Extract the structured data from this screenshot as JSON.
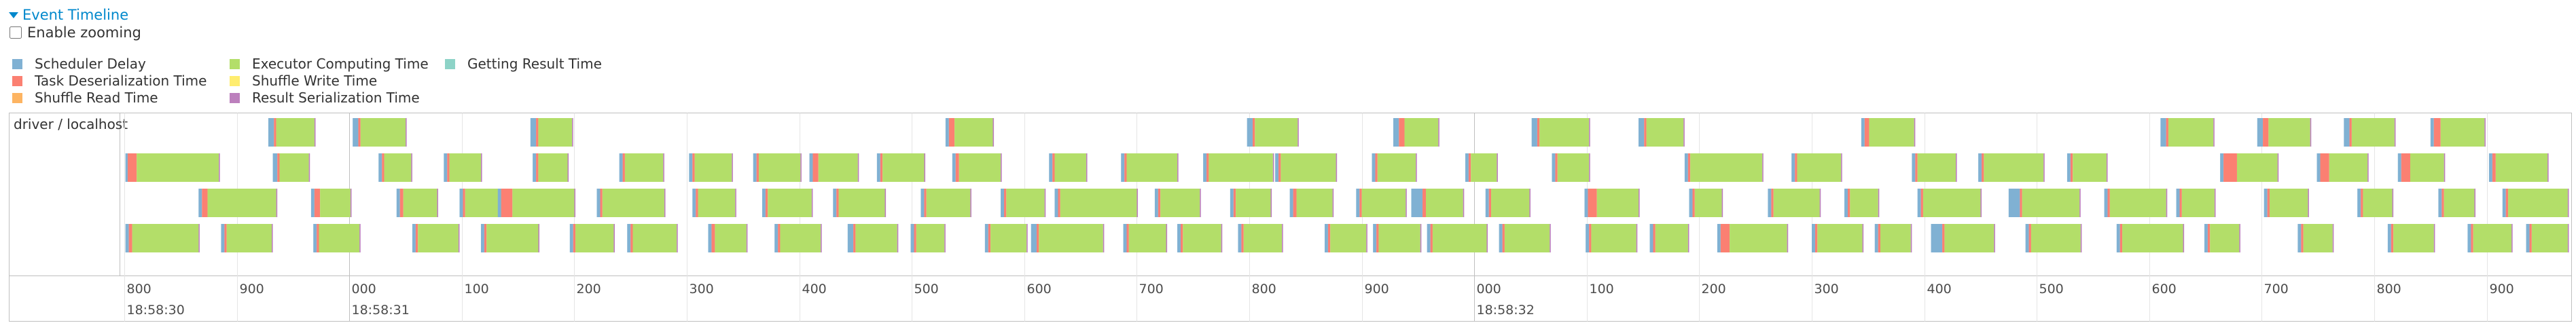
{
  "header": {
    "toggle_label": "Event Timeline",
    "zoom_label": "Enable zooming",
    "zoom_checked": false
  },
  "legend": [
    {
      "label": "Scheduler Delay",
      "color": "#80b1d3"
    },
    {
      "label": "Task Deserialization Time",
      "color": "#fb8072"
    },
    {
      "label": "Shuffle Read Time",
      "color": "#fdb462"
    },
    {
      "label": "Executor Computing Time",
      "color": "#b3de69"
    },
    {
      "label": "Shuffle Write Time",
      "color": "#ffed6f"
    },
    {
      "label": "Result Serialization Time",
      "color": "#bc80bd"
    },
    {
      "label": "Getting Result Time",
      "color": "#8dd3c7"
    }
  ],
  "timeline": {
    "group_label": "driver / localhost",
    "ticks": [
      {
        "ms": 800,
        "label": "800",
        "sub": "18:58:30"
      },
      {
        "ms": 900,
        "label": "900",
        "sub": ""
      },
      {
        "ms": 1000,
        "label": "000",
        "sub": "18:58:31",
        "major": true
      },
      {
        "ms": 1100,
        "label": "100",
        "sub": ""
      },
      {
        "ms": 1200,
        "label": "200",
        "sub": ""
      },
      {
        "ms": 1300,
        "label": "300",
        "sub": ""
      },
      {
        "ms": 1400,
        "label": "400",
        "sub": ""
      },
      {
        "ms": 1500,
        "label": "500",
        "sub": ""
      },
      {
        "ms": 1600,
        "label": "600",
        "sub": ""
      },
      {
        "ms": 1700,
        "label": "700",
        "sub": ""
      },
      {
        "ms": 1800,
        "label": "800",
        "sub": ""
      },
      {
        "ms": 1900,
        "label": "900",
        "sub": ""
      },
      {
        "ms": 2000,
        "label": "000",
        "sub": "18:58:32",
        "major": true
      },
      {
        "ms": 2100,
        "label": "100",
        "sub": ""
      },
      {
        "ms": 2200,
        "label": "200",
        "sub": ""
      },
      {
        "ms": 2300,
        "label": "300",
        "sub": ""
      },
      {
        "ms": 2400,
        "label": "400",
        "sub": ""
      },
      {
        "ms": 2500,
        "label": "500",
        "sub": ""
      },
      {
        "ms": 2600,
        "label": "600",
        "sub": ""
      },
      {
        "ms": 2700,
        "label": "700",
        "sub": ""
      },
      {
        "ms": 2800,
        "label": "800",
        "sub": ""
      },
      {
        "ms": 2900,
        "label": "900",
        "sub": ""
      }
    ],
    "rows": [
      [
        {
          "start": 928,
          "dur": 42,
          "sd": 5,
          "td": 2
        },
        {
          "start": 1003,
          "dur": 48,
          "sd": 5,
          "td": 2
        },
        {
          "start": 1161,
          "dur": 38,
          "sd": 5,
          "td": 2
        },
        {
          "start": 1530,
          "dur": 43,
          "sd": 3,
          "td": 5
        },
        {
          "start": 1798,
          "dur": 46,
          "sd": 5,
          "td": 2
        },
        {
          "start": 1928,
          "dur": 41,
          "sd": 5,
          "td": 5
        },
        {
          "start": 2051,
          "dur": 52,
          "sd": 5,
          "td": 2
        },
        {
          "start": 2146,
          "dur": 41,
          "sd": 5,
          "td": 2
        },
        {
          "start": 2344,
          "dur": 48,
          "sd": 3,
          "td": 4
        },
        {
          "start": 2610,
          "dur": 48,
          "sd": 5,
          "td": 2
        },
        {
          "start": 2696,
          "dur": 48,
          "sd": 5,
          "td": 5
        },
        {
          "start": 2773,
          "dur": 46,
          "sd": 5,
          "td": 2
        },
        {
          "start": 2850,
          "dur": 49,
          "sd": 3,
          "td": 6
        }
      ],
      [
        {
          "start": 801,
          "dur": 84,
          "sd": 2,
          "td": 8
        },
        {
          "start": 932,
          "dur": 33,
          "sd": 4,
          "td": 2
        },
        {
          "start": 1026,
          "dur": 30,
          "sd": 3,
          "td": 2
        },
        {
          "start": 1084,
          "dur": 34,
          "sd": 3,
          "td": 2
        },
        {
          "start": 1163,
          "dur": 32,
          "sd": 3,
          "td": 2
        },
        {
          "start": 1240,
          "dur": 40,
          "sd": 3,
          "td": 2
        },
        {
          "start": 1302,
          "dur": 39,
          "sd": 3,
          "td": 2
        },
        {
          "start": 1359,
          "dur": 43,
          "sd": 3,
          "td": 2
        },
        {
          "start": 1409,
          "dur": 44,
          "sd": 3,
          "td": 5
        },
        {
          "start": 1469,
          "dur": 43,
          "sd": 3,
          "td": 2
        },
        {
          "start": 1536,
          "dur": 44,
          "sd": 3,
          "td": 3
        },
        {
          "start": 1622,
          "dur": 34,
          "sd": 3,
          "td": 2
        },
        {
          "start": 1686,
          "dur": 51,
          "sd": 3,
          "td": 2
        },
        {
          "start": 1759,
          "dur": 63,
          "sd": 3,
          "td": 2
        },
        {
          "start": 1823,
          "dur": 55,
          "sd": 3,
          "td": 2
        },
        {
          "start": 1909,
          "dur": 40,
          "sd": 3,
          "td": 2
        },
        {
          "start": 1992,
          "dur": 29,
          "sd": 3,
          "td": 2
        },
        {
          "start": 2069,
          "dur": 34,
          "sd": 3,
          "td": 2
        },
        {
          "start": 2187,
          "dur": 70,
          "sd": 3,
          "td": 2
        },
        {
          "start": 2282,
          "dur": 45,
          "sd": 3,
          "td": 2
        },
        {
          "start": 2389,
          "dur": 40,
          "sd": 3,
          "td": 2
        },
        {
          "start": 2448,
          "dur": 59,
          "sd": 3,
          "td": 2
        },
        {
          "start": 2527,
          "dur": 36,
          "sd": 3,
          "td": 2
        },
        {
          "start": 2663,
          "dur": 52,
          "sd": 3,
          "td": 12
        },
        {
          "start": 2749,
          "dur": 46,
          "sd": 3,
          "td": 8
        },
        {
          "start": 2821,
          "dur": 42,
          "sd": 3,
          "td": 8
        },
        {
          "start": 2902,
          "dur": 53,
          "sd": 3,
          "td": 3
        }
      ],
      [
        {
          "start": 866,
          "dur": 70,
          "sd": 3,
          "td": 5
        },
        {
          "start": 966,
          "dur": 36,
          "sd": 3,
          "td": 5
        },
        {
          "start": 1042,
          "dur": 37,
          "sd": 3,
          "td": 3
        },
        {
          "start": 1098,
          "dur": 40,
          "sd": 3,
          "td": 2
        },
        {
          "start": 1132,
          "dur": 69,
          "sd": 3,
          "td": 10
        },
        {
          "start": 1220,
          "dur": 61,
          "sd": 3,
          "td": 2
        },
        {
          "start": 1305,
          "dur": 39,
          "sd": 3,
          "td": 2
        },
        {
          "start": 1367,
          "dur": 45,
          "sd": 3,
          "td": 2
        },
        {
          "start": 1430,
          "dur": 47,
          "sd": 3,
          "td": 2
        },
        {
          "start": 1508,
          "dur": 45,
          "sd": 3,
          "td": 2
        },
        {
          "start": 1579,
          "dur": 40,
          "sd": 3,
          "td": 2
        },
        {
          "start": 1627,
          "dur": 74,
          "sd": 3,
          "td": 2
        },
        {
          "start": 1716,
          "dur": 41,
          "sd": 3,
          "td": 2
        },
        {
          "start": 1783,
          "dur": 37,
          "sd": 3,
          "td": 2
        },
        {
          "start": 1836,
          "dur": 39,
          "sd": 3,
          "td": 3
        },
        {
          "start": 1895,
          "dur": 45,
          "sd": 3,
          "td": 2
        },
        {
          "start": 1944,
          "dur": 47,
          "sd": 10,
          "td": 3
        },
        {
          "start": 2010,
          "dur": 40,
          "sd": 3,
          "td": 2
        },
        {
          "start": 2098,
          "dur": 49,
          "sd": 3,
          "td": 8
        },
        {
          "start": 2191,
          "dur": 30,
          "sd": 3,
          "td": 2
        },
        {
          "start": 2261,
          "dur": 47,
          "sd": 3,
          "td": 2
        },
        {
          "start": 2329,
          "dur": 31,
          "sd": 3,
          "td": 2
        },
        {
          "start": 2394,
          "dur": 57,
          "sd": 3,
          "td": 2
        },
        {
          "start": 2475,
          "dur": 64,
          "sd": 10,
          "td": 2
        },
        {
          "start": 2560,
          "dur": 56,
          "sd": 3,
          "td": 2
        },
        {
          "start": 2624,
          "dur": 35,
          "sd": 3,
          "td": 2
        },
        {
          "start": 2702,
          "dur": 40,
          "sd": 3,
          "td": 2
        },
        {
          "start": 2785,
          "dur": 32,
          "sd": 3,
          "td": 2
        },
        {
          "start": 2857,
          "dur": 33,
          "sd": 3,
          "td": 2
        },
        {
          "start": 2914,
          "dur": 59,
          "sd": 3,
          "td": 2
        }
      ],
      [
        {
          "start": 801,
          "dur": 66,
          "sd": 3,
          "td": 3
        },
        {
          "start": 886,
          "dur": 46,
          "sd": 3,
          "td": 2
        },
        {
          "start": 968,
          "dur": 42,
          "sd": 3,
          "td": 2
        },
        {
          "start": 1056,
          "dur": 42,
          "sd": 3,
          "td": 2
        },
        {
          "start": 1117,
          "dur": 52,
          "sd": 3,
          "td": 2
        },
        {
          "start": 1196,
          "dur": 40,
          "sd": 3,
          "td": 2
        },
        {
          "start": 1247,
          "dur": 45,
          "sd": 3,
          "td": 2
        },
        {
          "start": 1319,
          "dur": 35,
          "sd": 3,
          "td": 3
        },
        {
          "start": 1378,
          "dur": 42,
          "sd": 3,
          "td": 2
        },
        {
          "start": 1443,
          "dur": 45,
          "sd": 5,
          "td": 2
        },
        {
          "start": 1499,
          "dur": 31,
          "sd": 3,
          "td": 2
        },
        {
          "start": 1565,
          "dur": 38,
          "sd": 3,
          "td": 2
        },
        {
          "start": 1606,
          "dur": 65,
          "sd": 5,
          "td": 2
        },
        {
          "start": 1688,
          "dur": 39,
          "sd": 3,
          "td": 2
        },
        {
          "start": 1736,
          "dur": 40,
          "sd": 3,
          "td": 2
        },
        {
          "start": 1790,
          "dur": 40,
          "sd": 3,
          "td": 2
        },
        {
          "start": 1867,
          "dur": 38,
          "sd": 3,
          "td": 2
        },
        {
          "start": 1910,
          "dur": 43,
          "sd": 3,
          "td": 2
        },
        {
          "start": 1958,
          "dur": 54,
          "sd": 3,
          "td": 2
        },
        {
          "start": 2022,
          "dur": 46,
          "sd": 3,
          "td": 2
        },
        {
          "start": 2099,
          "dur": 46,
          "sd": 3,
          "td": 2
        },
        {
          "start": 2156,
          "dur": 35,
          "sd": 3,
          "td": 2
        },
        {
          "start": 2216,
          "dur": 63,
          "sd": 3,
          "td": 8
        },
        {
          "start": 2300,
          "dur": 46,
          "sd": 3,
          "td": 2
        },
        {
          "start": 2356,
          "dur": 33,
          "sd": 3,
          "td": 2
        },
        {
          "start": 2406,
          "dur": 57,
          "sd": 10,
          "td": 2
        },
        {
          "start": 2490,
          "dur": 50,
          "sd": 3,
          "td": 2
        },
        {
          "start": 2571,
          "dur": 60,
          "sd": 3,
          "td": 2
        },
        {
          "start": 2649,
          "dur": 32,
          "sd": 3,
          "td": 2
        },
        {
          "start": 2732,
          "dur": 32,
          "sd": 3,
          "td": 2
        },
        {
          "start": 2812,
          "dur": 42,
          "sd": 3,
          "td": 2
        },
        {
          "start": 2883,
          "dur": 40,
          "sd": 3,
          "td": 2
        },
        {
          "start": 2935,
          "dur": 38,
          "sd": 3,
          "td": 2
        }
      ]
    ]
  }
}
